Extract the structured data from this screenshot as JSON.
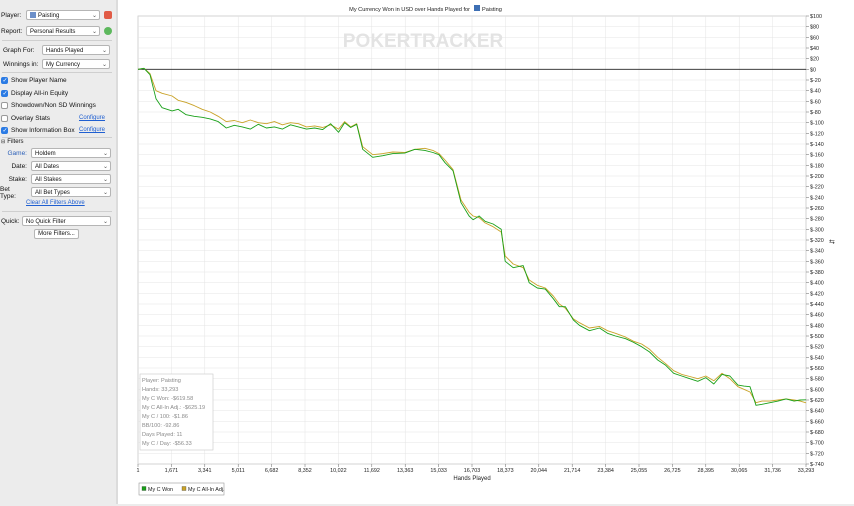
{
  "sidebar": {
    "player_label": "Player:",
    "player_value": "Paisting",
    "report_label": "Report:",
    "report_value": "Personal Results",
    "graph_for_label": "Graph For:",
    "graph_for_value": "Hands Played",
    "winnings_in_label": "Winnings in:",
    "winnings_in_value": "My Currency",
    "checkboxes": [
      {
        "label": "Show Player Name",
        "checked": true
      },
      {
        "label": "Display All-in Equity",
        "checked": true
      },
      {
        "label": "Showdown/Non SD Winnings",
        "checked": false
      },
      {
        "label": "Overlay Stats",
        "checked": false
      },
      {
        "label": "Show Information Box",
        "checked": true
      }
    ],
    "configure_label": "Configure",
    "filters_label": "Filters",
    "game_label": "Game:",
    "game_value": "Holdem",
    "date_label": "Date:",
    "date_value": "All Dates",
    "stake_label": "Stake:",
    "stake_value": "All Stakes",
    "bet_type_label": "Bet Type:",
    "bet_type_value": "All Bet Types",
    "clear_filters_label": "Clear All Filters Above",
    "quick_label": "Quick:",
    "quick_value": "No Quick Filter",
    "more_filters_label": "More Filters..."
  },
  "chart_data": {
    "type": "line",
    "title": "My Currency Won in USD over Hands Played for",
    "title_player": "Paisting",
    "watermark": "POKERTRACKER",
    "xlabel": "Hands Played",
    "ylabel": "",
    "xlim": [
      1,
      33293
    ],
    "ylim": [
      -740,
      100
    ],
    "x_ticks": [
      "1",
      "1,671",
      "3,341",
      "5,011",
      "6,682",
      "8,352",
      "10,022",
      "11,692",
      "13,363",
      "15,033",
      "16,703",
      "18,373",
      "20,044",
      "21,714",
      "23,384",
      "25,055",
      "26,725",
      "28,395",
      "30,065",
      "31,736",
      "33,293"
    ],
    "y_ticks": [
      100,
      80,
      60,
      40,
      20,
      0,
      -20,
      -40,
      -60,
      -80,
      -100,
      -120,
      -140,
      -160,
      -180,
      -200,
      -220,
      -240,
      -260,
      -280,
      -300,
      -320,
      -340,
      -360,
      -380,
      -400,
      -420,
      -440,
      -460,
      -480,
      -500,
      -520,
      -540,
      -560,
      -580,
      -600,
      -620,
      -640,
      -660,
      -680,
      -700,
      -720,
      -740
    ],
    "y_tick_prefix": "$",
    "grid": true,
    "legend_position": "bottom-left",
    "series": [
      {
        "name": "My C Won",
        "color": "#18a018",
        "x": [
          1,
          300,
          600,
          900,
          1200,
          1700,
          2000,
          2400,
          2800,
          3200,
          3600,
          4000,
          4400,
          4800,
          5200,
          5600,
          6000,
          6400,
          6800,
          7200,
          7600,
          8000,
          8400,
          8800,
          9200,
          9600,
          10000,
          10300,
          10600,
          10900,
          11200,
          11700,
          12200,
          12700,
          13300,
          13800,
          14300,
          14700,
          15000,
          15300,
          15700,
          16100,
          16500,
          16700,
          17000,
          17300,
          17700,
          18100,
          18300,
          18700,
          19200,
          19500,
          19900,
          20300,
          20700,
          21000,
          21300,
          21700,
          22000,
          22500,
          23000,
          23400,
          23800,
          24300,
          24700,
          25100,
          25500,
          25900,
          26300,
          26700,
          27100,
          27500,
          27900,
          28300,
          28700,
          29100,
          29500,
          29900,
          30200,
          30500,
          30800,
          31100,
          31500,
          31900,
          32300,
          32700,
          33000,
          33293
        ],
        "values": [
          0,
          2,
          -10,
          -55,
          -72,
          -78,
          -75,
          -85,
          -88,
          -90,
          -93,
          -98,
          -110,
          -105,
          -108,
          -112,
          -103,
          -110,
          -108,
          -112,
          -104,
          -108,
          -112,
          -110,
          -113,
          -102,
          -118,
          -100,
          -109,
          -103,
          -150,
          -165,
          -162,
          -158,
          -157,
          -150,
          -152,
          -156,
          -160,
          -175,
          -190,
          -250,
          -275,
          -282,
          -275,
          -285,
          -290,
          -300,
          -360,
          -372,
          -368,
          -400,
          -410,
          -412,
          -430,
          -445,
          -445,
          -470,
          -480,
          -490,
          -485,
          -495,
          -500,
          -505,
          -512,
          -520,
          -530,
          -545,
          -555,
          -570,
          -575,
          -580,
          -585,
          -578,
          -590,
          -572,
          -575,
          -592,
          -594,
          -595,
          -630,
          -628,
          -625,
          -622,
          -618,
          -622,
          -620,
          -619.58
        ]
      },
      {
        "name": "My C All-In Adj.",
        "color": "#c9a227",
        "x": [
          1,
          300,
          600,
          900,
          1200,
          1700,
          2000,
          2400,
          2800,
          3200,
          3600,
          4000,
          4400,
          4800,
          5200,
          5600,
          6000,
          6400,
          6800,
          7200,
          7600,
          8000,
          8400,
          8800,
          9200,
          9600,
          10000,
          10300,
          10600,
          10900,
          11200,
          11700,
          12200,
          12700,
          13300,
          13800,
          14300,
          14700,
          15000,
          15300,
          15700,
          16100,
          16500,
          16700,
          17000,
          17300,
          17700,
          18100,
          18300,
          18700,
          19200,
          19500,
          19900,
          20300,
          20700,
          21000,
          21300,
          21700,
          22000,
          22500,
          23000,
          23400,
          23800,
          24300,
          24700,
          25100,
          25500,
          25900,
          26300,
          26700,
          27100,
          27500,
          27900,
          28300,
          28700,
          29100,
          29500,
          29900,
          30200,
          30500,
          30800,
          31100,
          31500,
          31900,
          32300,
          32700,
          33000,
          33293
        ],
        "values": [
          0,
          2,
          -8,
          -40,
          -45,
          -50,
          -58,
          -62,
          -68,
          -75,
          -80,
          -88,
          -98,
          -96,
          -100,
          -95,
          -100,
          -102,
          -98,
          -104,
          -100,
          -102,
          -108,
          -106,
          -109,
          -104,
          -112,
          -98,
          -108,
          -102,
          -145,
          -160,
          -158,
          -155,
          -156,
          -150,
          -148,
          -152,
          -158,
          -170,
          -188,
          -245,
          -268,
          -275,
          -278,
          -288,
          -295,
          -305,
          -350,
          -365,
          -372,
          -395,
          -405,
          -410,
          -425,
          -440,
          -448,
          -468,
          -475,
          -485,
          -482,
          -490,
          -495,
          -502,
          -510,
          -515,
          -525,
          -540,
          -552,
          -565,
          -572,
          -576,
          -580,
          -575,
          -584,
          -570,
          -580,
          -595,
          -600,
          -605,
          -625,
          -622,
          -622,
          -620,
          -618,
          -620,
          -622,
          -625.19
        ]
      }
    ],
    "info_box": [
      "Player: Paisting",
      "Hands: 33,293",
      "My C Won: -$619.58",
      "My C All-In Adj.: -$625.19",
      "My C / 100: -$1.86",
      "BB/100: -92.86",
      "Days Played: 11",
      "My C / Day: -$56.33"
    ]
  }
}
